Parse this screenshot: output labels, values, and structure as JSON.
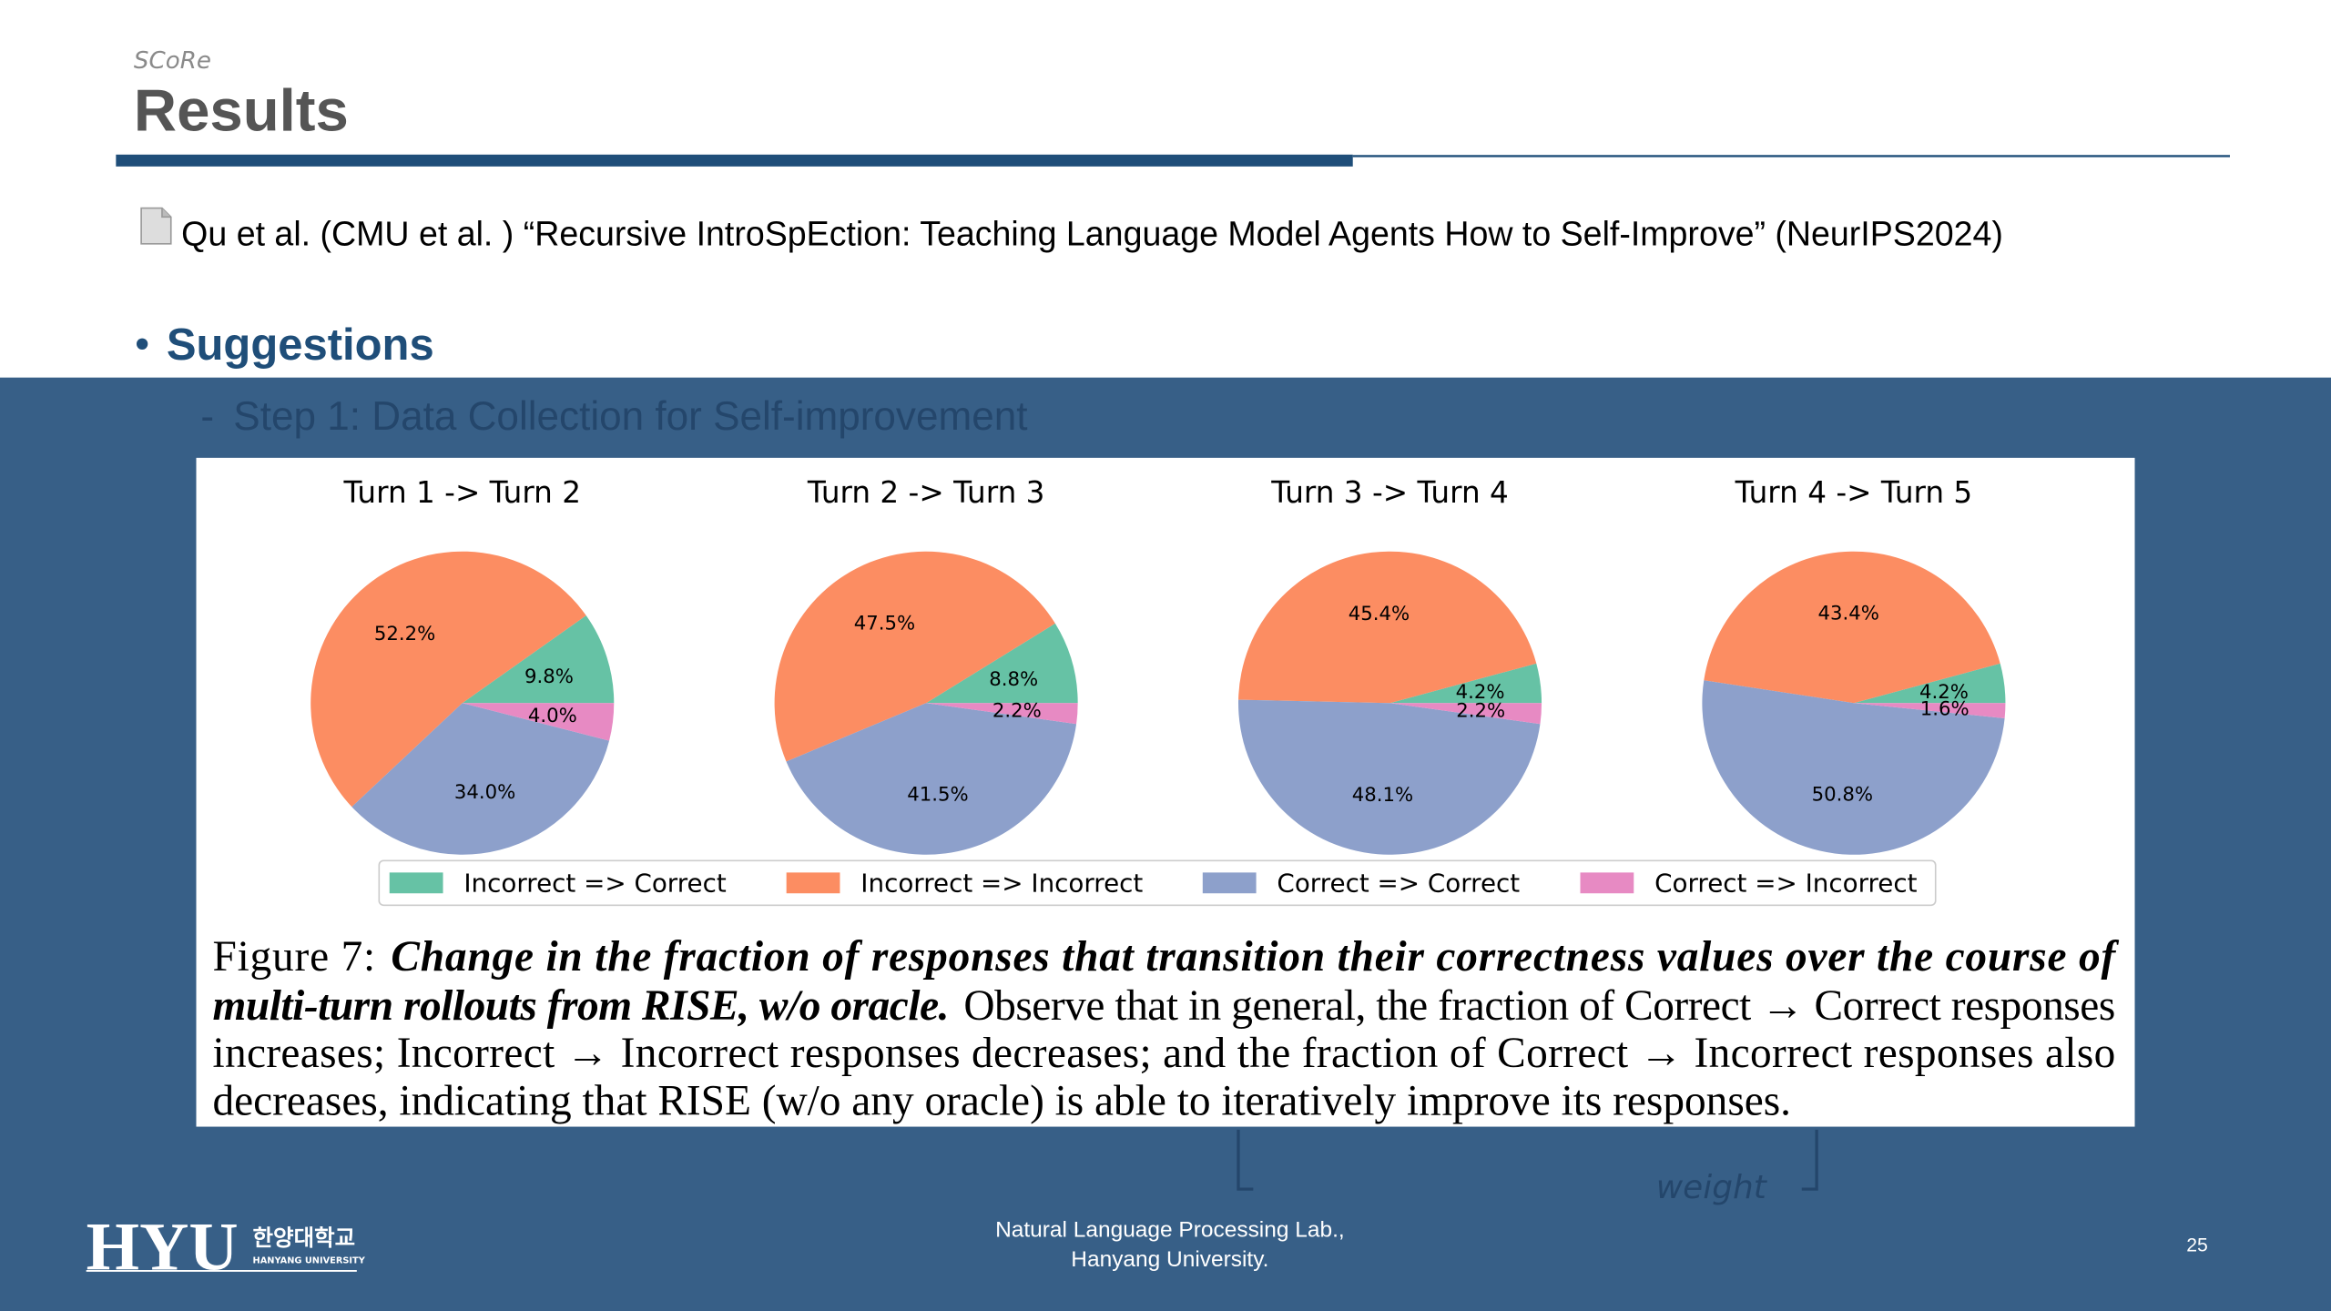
{
  "header": {
    "section": "SCoRe",
    "title": "Results"
  },
  "citation": "Qu et al. (CMU et al. ) “Recursive IntroSpEction: Teaching Language Model Agents How to Self-Improve” (NeurIPS2024)",
  "bullet": {
    "heading": "Suggestions",
    "sub": "Step 1: Data Collection for Self-improvement",
    "fragment": "weight"
  },
  "legend": {
    "labels": [
      "Incorrect => Correct",
      "Incorrect => Incorrect",
      "Correct => Correct",
      "Correct => Incorrect"
    ],
    "colors": [
      "#66c2a5",
      "#fc8d62",
      "#8da0cb",
      "#e78ac3"
    ]
  },
  "chart_data": [
    {
      "type": "pie",
      "title": "Turn 1 -> Turn 2",
      "values": [
        9.8,
        52.2,
        34.0,
        4.0
      ],
      "value_labels": [
        "9.8%",
        "52.2%",
        "34.0%",
        "4.0%"
      ]
    },
    {
      "type": "pie",
      "title": "Turn 2 -> Turn 3",
      "values": [
        8.8,
        47.5,
        41.5,
        2.2
      ],
      "value_labels": [
        "8.8%",
        "47.5%",
        "41.5%",
        "2.2%"
      ]
    },
    {
      "type": "pie",
      "title": "Turn 3 -> Turn 4",
      "values": [
        4.2,
        45.4,
        48.1,
        2.2
      ],
      "value_labels": [
        "4.2%",
        "45.4%",
        "48.1%",
        "2.2%"
      ]
    },
    {
      "type": "pie",
      "title": "Turn 4 -> Turn 5",
      "values": [
        4.2,
        43.4,
        50.8,
        1.6
      ],
      "value_labels": [
        "4.2%",
        "43.4%",
        "50.8%",
        "1.6%"
      ]
    }
  ],
  "caption": {
    "label": "Figure 7:",
    "emphasis": [
      "Change in the fraction of responses that transition their correctness values over the course of",
      "multi-turn rollouts from RISE, w/o oracle."
    ],
    "body": [
      "Observe that in general, the fraction of Correct → Correct responses",
      "increases; Incorrect → Incorrect responses decreases; and the fraction of Correct → Incorrect responses also",
      "decreases, indicating that RISE (w/o any oracle) is able to iteratively improve its responses."
    ]
  },
  "footer": {
    "logo": "HYU",
    "logo_korean": "한양대학교",
    "logo_english": "HANYANG UNIVERSITY",
    "lab": "Natural Language Processing Lab.,",
    "university": "Hanyang University.",
    "page": "25"
  }
}
